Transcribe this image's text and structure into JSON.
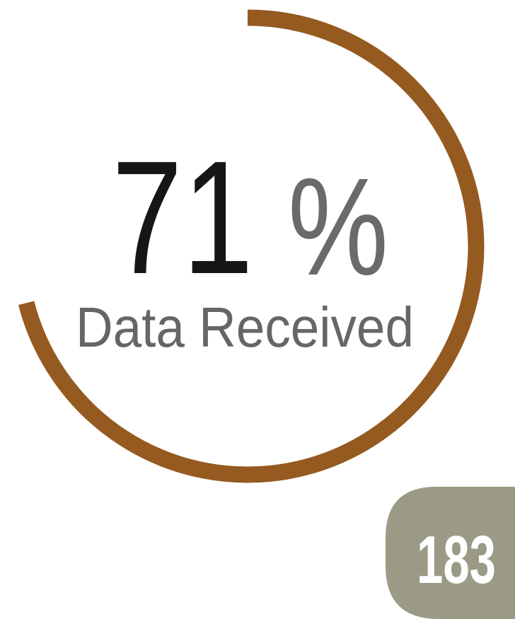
{
  "progress": {
    "value": 71,
    "unit": "%",
    "label": "Data Received",
    "lim": [
      0,
      100
    ],
    "color": "#955a20"
  },
  "badge": {
    "count": "183"
  }
}
